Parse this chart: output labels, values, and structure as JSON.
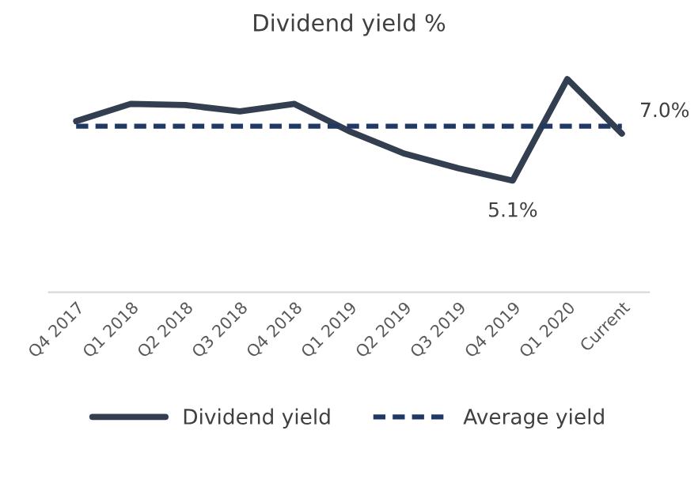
{
  "chart_data": {
    "type": "line",
    "title": "Dividend yield %",
    "categories": [
      "Q4 2017",
      "Q1 2018",
      "Q2 2018",
      "Q3 2018",
      "Q4 2018",
      "Q1 2019",
      "Q2 2019",
      "Q3 2019",
      "Q4 2019",
      "Q1 2020",
      "Current"
    ],
    "series": [
      {
        "name": "Dividend yield",
        "color": "#333f50",
        "line_style": "solid",
        "values": [
          7.5,
          8.2,
          8.15,
          7.9,
          8.2,
          7.1,
          6.2,
          5.6,
          5.1,
          9.2,
          7.0
        ],
        "value_labels": [
          null,
          null,
          null,
          null,
          null,
          null,
          null,
          null,
          "5.1%",
          null,
          "7.0%"
        ]
      },
      {
        "name": "Average yield",
        "color": "#1f3864",
        "line_style": "dashed",
        "values": [
          7.3,
          7.3,
          7.3,
          7.3,
          7.3,
          7.3,
          7.3,
          7.3,
          7.3,
          7.3,
          7.3
        ]
      }
    ],
    "grid": false,
    "legend": "bottom",
    "marker": "none",
    "tick_labels": "x"
  }
}
